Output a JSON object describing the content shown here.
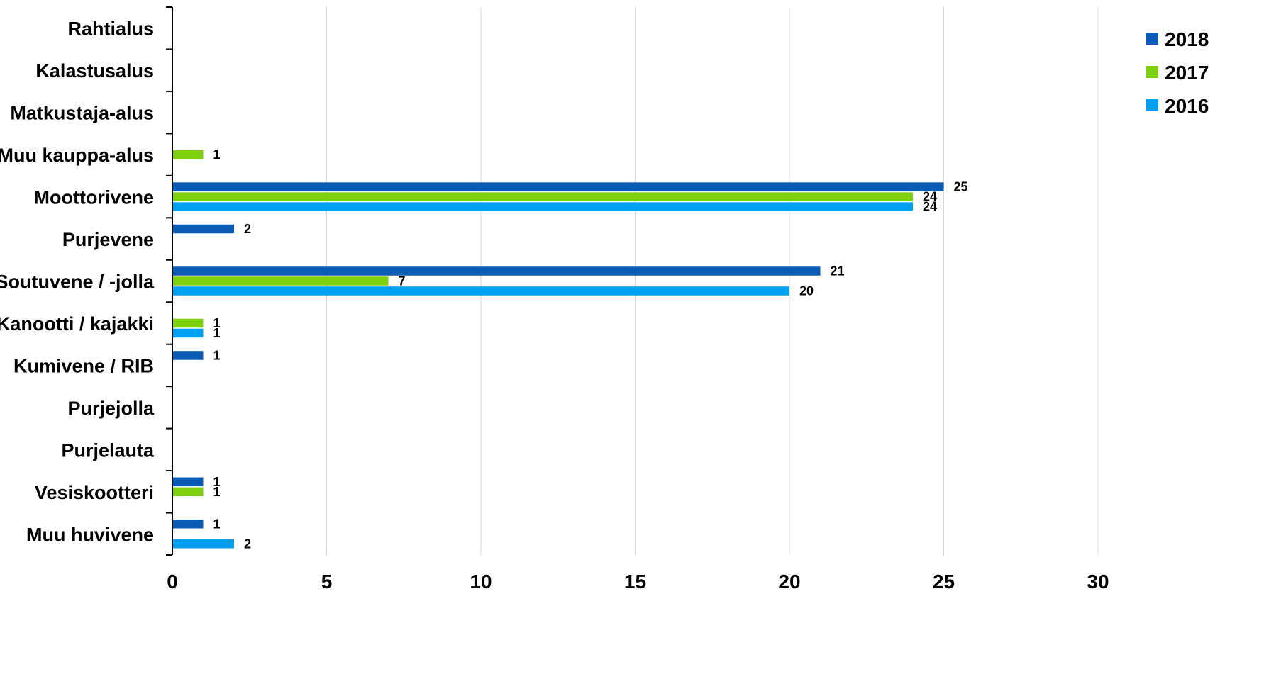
{
  "chart_data": {
    "type": "bar",
    "orientation": "horizontal",
    "categories": [
      "Rahtialus",
      "Kalastusalus",
      "Matkustaja-alus",
      "Muu kauppa-alus",
      "Moottorivene",
      "Purjevene",
      "Soutuvene / -jolla",
      "Kanootti / kajakki",
      "Kumivene / RIB",
      "Purjejolla",
      "Purjelauta",
      "Vesiskootteri",
      "Muu huvivene"
    ],
    "series": [
      {
        "name": "2018",
        "color": "#0b5cb5",
        "values": [
          null,
          null,
          null,
          null,
          25,
          2,
          21,
          null,
          1,
          null,
          null,
          1,
          1
        ]
      },
      {
        "name": "2017",
        "color": "#7fd10d",
        "values": [
          null,
          null,
          null,
          1,
          24,
          null,
          7,
          1,
          null,
          null,
          null,
          1,
          null
        ]
      },
      {
        "name": "2016",
        "color": "#00a0f0",
        "values": [
          null,
          null,
          null,
          null,
          24,
          null,
          20,
          1,
          null,
          null,
          null,
          null,
          2
        ]
      }
    ],
    "xlim": [
      0,
      30
    ],
    "xticks": [
      0,
      5,
      10,
      15,
      20,
      25,
      30
    ],
    "grid": "vertical",
    "legend": "top-right",
    "title": "",
    "xlabel": "",
    "ylabel": ""
  }
}
